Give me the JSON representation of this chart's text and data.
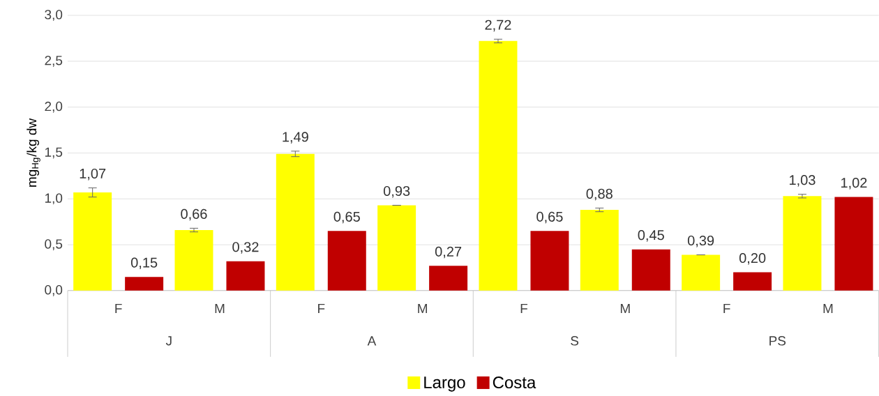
{
  "chart_data": {
    "type": "bar",
    "ylabel": "mg$_{Hg}$/kg dw",
    "categories": [
      "F",
      "M",
      "F",
      "M",
      "F",
      "M",
      "F",
      "M"
    ],
    "annotations": [
      "J",
      "A",
      "S",
      "PS"
    ],
    "series": [
      {
        "name": "Largo",
        "color": "#ffff00",
        "values": [
          1.07,
          0.66,
          1.49,
          0.93,
          2.72,
          0.88,
          0.39,
          1.03
        ],
        "errors": [
          0.05,
          0.02,
          0.03,
          null,
          0.02,
          0.02,
          null,
          0.02
        ],
        "value_labels": [
          "1,07",
          "0,66",
          "1,49",
          "0,93",
          "2,72",
          "0,88",
          "0,39",
          "1,03"
        ]
      },
      {
        "name": "Costa",
        "color": "#c00000",
        "values": [
          0.15,
          0.32,
          0.65,
          0.27,
          0.65,
          0.45,
          0.2,
          1.02
        ],
        "value_labels": [
          "0,15",
          "0,32",
          "0,65",
          "0,27",
          "0,65",
          "0,45",
          "0,20",
          "1,02"
        ]
      }
    ],
    "ylim": [
      0,
      3
    ],
    "yticks": [
      {
        "value": 0,
        "label": "0,0"
      },
      {
        "value": 0.5,
        "label": "0,5"
      },
      {
        "value": 1,
        "label": "1,0"
      },
      {
        "value": 1.5,
        "label": "1,5"
      },
      {
        "value": 2,
        "label": "2,0"
      },
      {
        "value": 2.5,
        "label": "2,5"
      },
      {
        "value": 3,
        "label": "3,0"
      }
    ],
    "grid": "y",
    "legend": "bottom"
  }
}
